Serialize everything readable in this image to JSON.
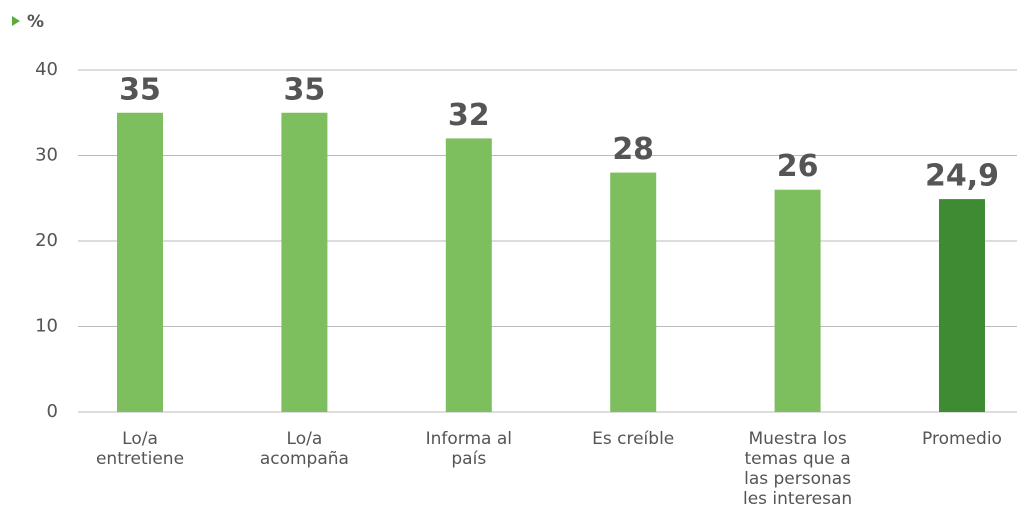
{
  "chart_data": {
    "type": "bar",
    "unit_label": "%",
    "categories": [
      "Lo/a entretiene",
      "Lo/a acompaña",
      "Informa al país",
      "Es creíble",
      "Muestra los temas que a las personas les interesan",
      "Promedio"
    ],
    "values": [
      35,
      35,
      32,
      28,
      26,
      24.9
    ],
    "value_labels": [
      "35",
      "35",
      "32",
      "28",
      "26",
      "24,9"
    ],
    "colors": [
      "#7dbf5f",
      "#7dbf5f",
      "#7dbf5f",
      "#7dbf5f",
      "#7dbf5f",
      "#3f8b34"
    ],
    "ylim": [
      0,
      40
    ],
    "yticks": [
      0,
      10,
      20,
      30,
      40
    ],
    "grid": true
  }
}
